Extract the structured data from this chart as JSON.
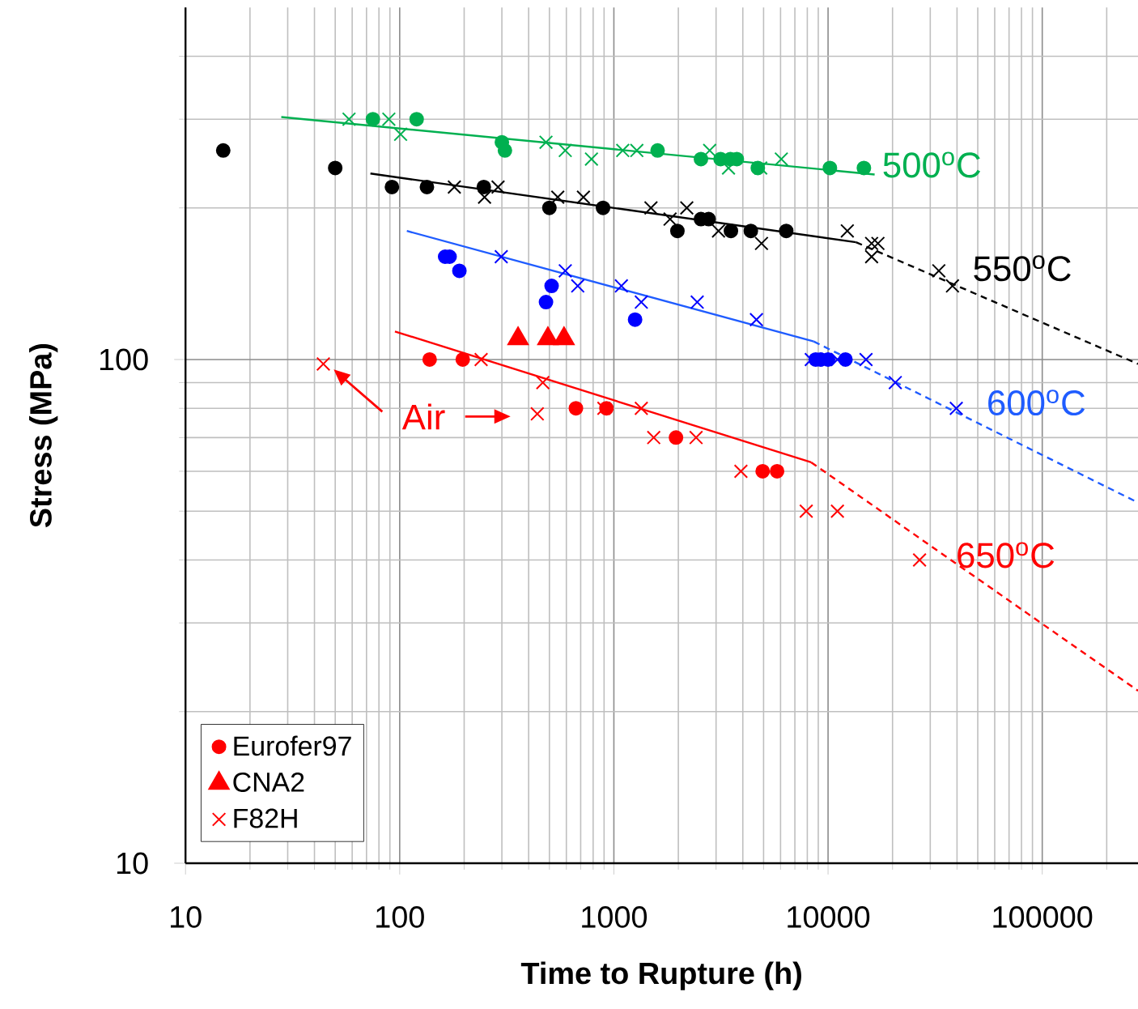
{
  "chart_data": {
    "type": "scatter",
    "xlabel": "Time to Rupture (h)",
    "ylabel": "Stress (MPa)",
    "log": "xy",
    "grid": true,
    "legend": "bottom left",
    "xlim": [
      10,
      280000
    ],
    "ylim": [
      10,
      500
    ],
    "xticks": [
      10,
      100,
      1000,
      10000,
      100000
    ],
    "yticks": [
      10,
      100
    ],
    "series": [
      {
        "color": "#00b050",
        "marker": "circle",
        "x": [
          75,
          120,
          300,
          310,
          1600,
          2550,
          3150,
          3500,
          3750,
          4700,
          10200,
          14700
        ],
        "values": [
          300,
          300,
          270,
          260,
          260,
          250,
          250,
          250,
          250,
          240,
          240,
          240
        ]
      },
      {
        "color": "#00b050",
        "marker": "cross",
        "x": [
          58,
          89,
          101,
          482,
          593,
          786,
          1100,
          1280,
          2800,
          3430,
          4850,
          6050
        ],
        "values": [
          300,
          300,
          280,
          270,
          260,
          250,
          260,
          260,
          260,
          240,
          240,
          250
        ]
      },
      {
        "name": "500$^{o}$C",
        "color": "#00b050",
        "type": "line",
        "marker": "none",
        "line_style": "solid",
        "x": [
          28,
          16500
        ],
        "values": [
          303,
          233
        ]
      },
      {
        "color": "#000000",
        "marker": "circle",
        "x": [
          15,
          50,
          92,
          134,
          247,
          500,
          890,
          1980,
          2550,
          2770,
          3520,
          4360,
          6380
        ],
        "values": [
          260,
          240,
          220,
          220,
          220,
          200,
          200,
          180,
          190,
          190,
          180,
          180,
          180
        ]
      },
      {
        "color": "#000000",
        "marker": "cross",
        "x": [
          180,
          249,
          288,
          547,
          721,
          1490,
          1830,
          2190,
          3080,
          4890,
          12300,
          15970,
          17100,
          15970,
          32900,
          38100
        ],
        "values": [
          220,
          210,
          220,
          210,
          210,
          200,
          190,
          200,
          180,
          170,
          180,
          170,
          170,
          160,
          150,
          140
        ]
      },
      {
        "color": "#000000",
        "type": "line",
        "marker": "none",
        "line_style": "solid",
        "x": [
          73,
          13500
        ],
        "values": [
          234,
          171
        ]
      },
      {
        "name": "550$^{o}$C",
        "color": "#000000",
        "type": "line",
        "marker": "none",
        "line_style": "dashed",
        "x": [
          13500,
          280000
        ],
        "values": [
          171,
          98
        ]
      },
      {
        "color": "#0000ff",
        "marker": "circle",
        "x": [
          163,
          171,
          190,
          482,
          512,
          1256,
          8750,
          9230,
          10000,
          12060
        ],
        "values": [
          160,
          160,
          150,
          130,
          140,
          120,
          100,
          100,
          100,
          100
        ]
      },
      {
        "color": "#0000ff",
        "marker": "cross",
        "x": [
          298,
          593,
          678,
          1084,
          1343,
          2450,
          4630,
          8350,
          11060,
          15040,
          20600,
          39700
        ],
        "values": [
          160,
          150,
          140,
          140,
          130,
          130,
          120,
          100,
          100,
          100,
          90,
          80
        ]
      },
      {
        "color": "#1f5cff",
        "type": "line",
        "marker": "none",
        "line_style": "solid",
        "x": [
          108,
          8570
        ],
        "values": [
          180,
          108.6
        ]
      },
      {
        "name": "600$^{o}$C",
        "color": "#1f5cff",
        "type": "line",
        "marker": "none",
        "line_style": "dashed",
        "x": [
          8570,
          280000
        ],
        "values": [
          108.6,
          52
        ]
      },
      {
        "name": "Eurofer97",
        "color": "#ff0000",
        "marker": "circle",
        "x": [
          138,
          197,
          665,
          923,
          1950,
          4950,
          5780
        ],
        "values": [
          100,
          100,
          80,
          80,
          70,
          60,
          60
        ]
      },
      {
        "name": "CNA2",
        "color": "#ff0000",
        "marker": "triangle",
        "x": [
          357,
          492,
          585
        ],
        "values": [
          110,
          110,
          110
        ]
      },
      {
        "name": "F82H",
        "color": "#ff0000",
        "marker": "cross",
        "x": [
          44,
          240,
          466,
          439,
          898,
          1343,
          1535,
          2420,
          3920,
          7910,
          11060,
          26740
        ],
        "values": [
          98,
          100,
          90,
          78,
          80,
          80,
          70,
          70,
          60,
          50,
          50,
          40
        ]
      },
      {
        "color": "#ff0000",
        "type": "line",
        "marker": "none",
        "line_style": "solid",
        "x": [
          95,
          8340
        ],
        "values": [
          113.7,
          62.5
        ]
      },
      {
        "name": "650$^{o}$C",
        "color": "#ff0000",
        "type": "line",
        "marker": "none",
        "line_style": "dashed",
        "x": [
          8340,
          280000
        ],
        "values": [
          62.5,
          22
        ]
      }
    ],
    "annotations": [
      "Air"
    ]
  }
}
